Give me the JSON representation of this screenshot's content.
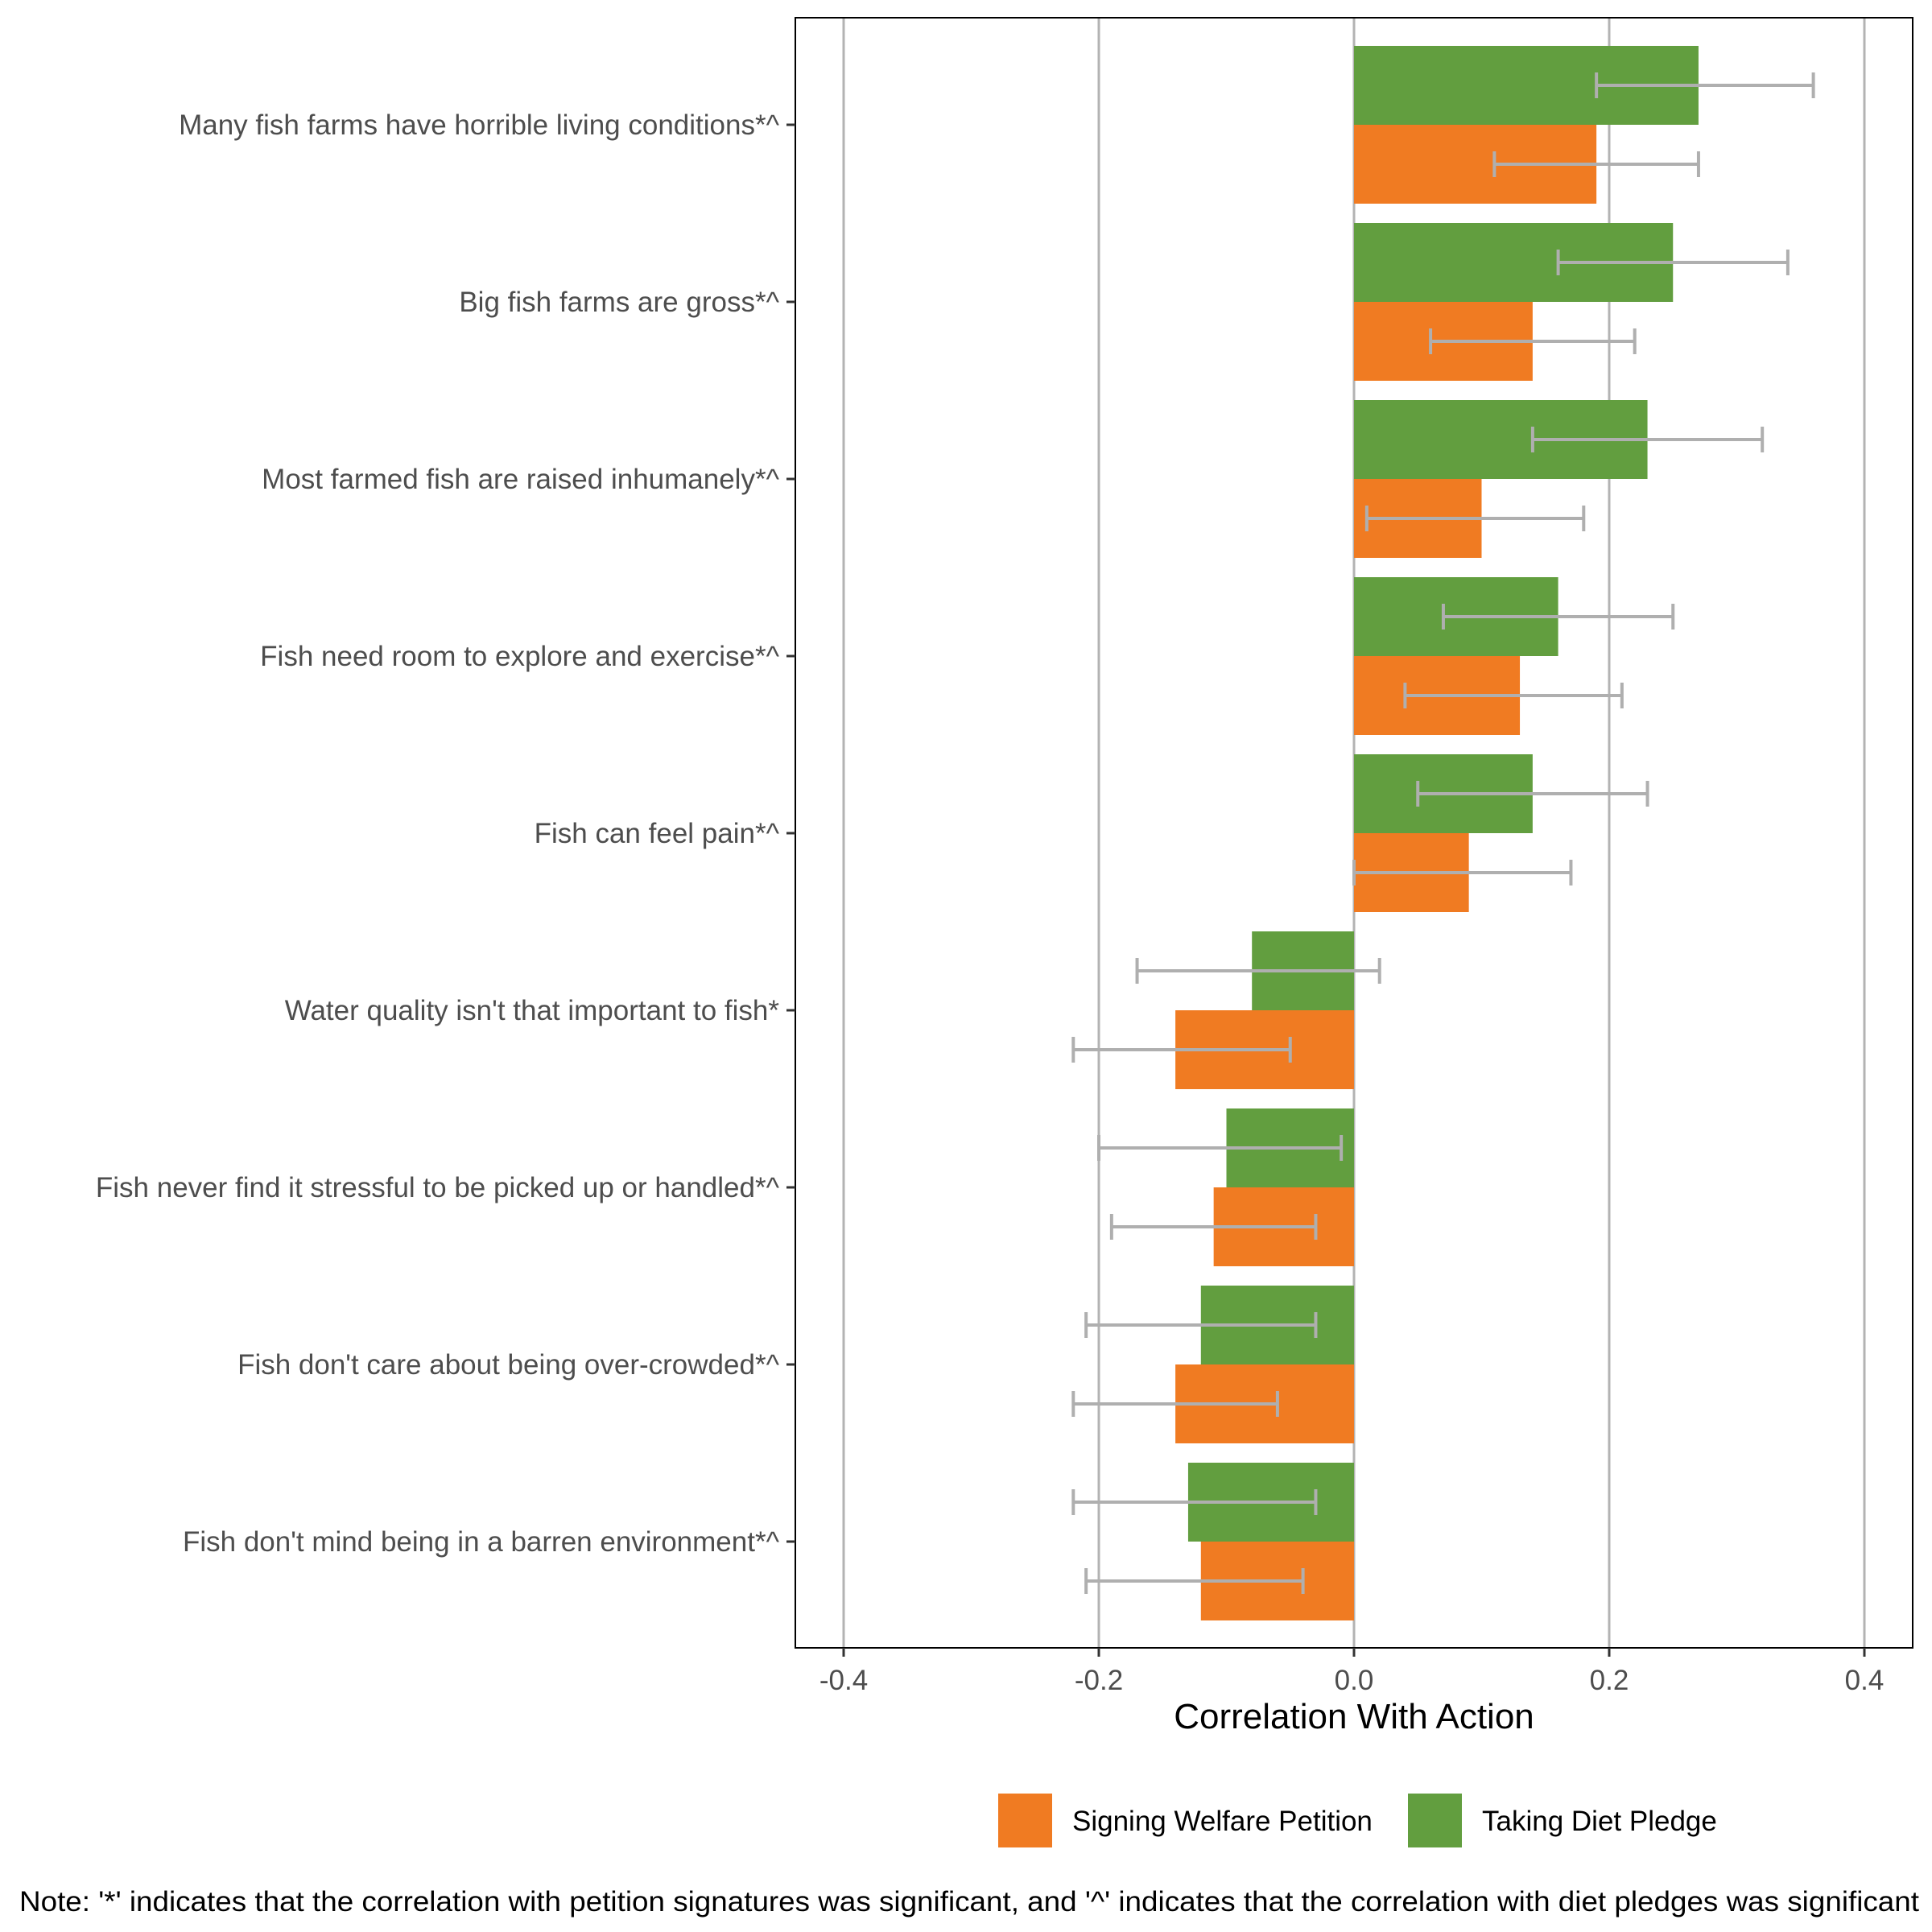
{
  "chart_data": {
    "type": "bar",
    "orientation": "horizontal",
    "title": "",
    "xlabel": "Correlation With Action",
    "ylabel": "",
    "xlim": [
      -0.44,
      0.44
    ],
    "xticks": [
      -0.4,
      -0.2,
      0.0,
      0.2,
      0.4
    ],
    "xtick_labels": [
      "-0.4",
      "-0.2",
      "0.0",
      "0.2",
      "0.4"
    ],
    "grid": "vertical major lines",
    "legend_position": "bottom-right",
    "categories": [
      "Many fish farms have horrible living conditions*^",
      "Big fish farms are gross*^",
      "Most farmed fish are raised inhumanely*^",
      "Fish need room to explore and exercise*^",
      "Fish can feel pain*^",
      "Water quality isn't that important to fish*",
      "Fish never find it stressful to be picked up or handled*^",
      "Fish don't care about being over-crowded*^",
      "Fish don't mind being in a barren environment*^"
    ],
    "series": [
      {
        "name": "Signing Welfare Petition",
        "color": "#F07B22",
        "values": [
          0.19,
          0.14,
          0.1,
          0.13,
          0.09,
          -0.14,
          -0.11,
          -0.14,
          -0.12
        ],
        "ci_low": [
          0.11,
          0.06,
          0.01,
          0.04,
          0.0,
          -0.22,
          -0.19,
          -0.22,
          -0.21
        ],
        "ci_high": [
          0.27,
          0.22,
          0.18,
          0.21,
          0.17,
          -0.05,
          -0.03,
          -0.06,
          -0.04
        ]
      },
      {
        "name": "Taking Diet Pledge",
        "color": "#629E3F",
        "values": [
          0.27,
          0.25,
          0.23,
          0.16,
          0.14,
          -0.08,
          -0.1,
          -0.12,
          -0.13
        ],
        "ci_low": [
          0.19,
          0.16,
          0.14,
          0.07,
          0.05,
          -0.17,
          -0.2,
          -0.21,
          -0.22
        ],
        "ci_high": [
          0.36,
          0.34,
          0.32,
          0.25,
          0.23,
          0.02,
          -0.01,
          -0.03,
          -0.03
        ]
      }
    ],
    "error_bar_color": "#AFAFAF",
    "note": "Note: '*' indicates that the correlation with petition signatures was significant, and '^' indicates that the correlation with diet pledges was significant"
  }
}
